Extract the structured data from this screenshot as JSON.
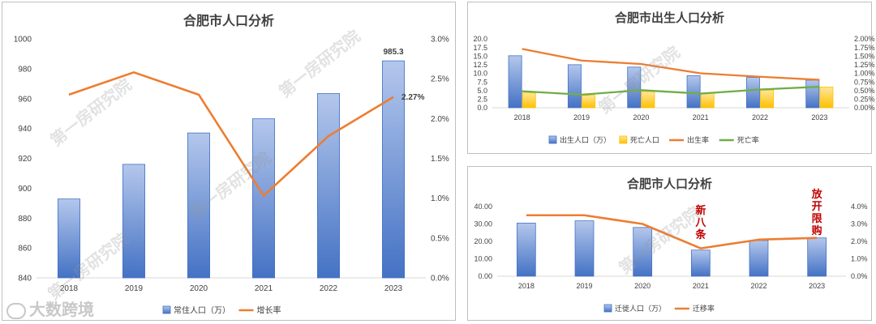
{
  "chart_data": [
    {
      "type": "bar+line",
      "title": "合肥市人口分析",
      "categories": [
        "2018",
        "2019",
        "2020",
        "2021",
        "2022",
        "2023"
      ],
      "series": [
        {
          "name": "常住人口（万）",
          "type": "bar",
          "axis": "left",
          "values": [
            892.8,
            916.0,
            937.0,
            946.5,
            963.4,
            985.3
          ]
        },
        {
          "name": "增长率",
          "type": "line",
          "axis": "right",
          "values": [
            0.023,
            0.0258,
            0.023,
            0.0103,
            0.0178,
            0.0227
          ]
        }
      ],
      "left_axis": {
        "min": 840,
        "max": 1000,
        "ticks": [
          "840",
          "860",
          "880",
          "900",
          "920",
          "940",
          "960",
          "980",
          "1000"
        ]
      },
      "right_axis": {
        "min": 0,
        "max": 0.03,
        "ticks": [
          "0.0%",
          "0.5%",
          "1.0%",
          "1.5%",
          "2.0%",
          "2.5%",
          "3.0%"
        ]
      },
      "data_labels": [
        "985.3",
        "2.27%"
      ],
      "grid": false,
      "legend": "bottom",
      "colors": {
        "bar": "#4472c4",
        "line": "#ed7d31"
      }
    },
    {
      "type": "bar+line",
      "title": "合肥市出生人口分析",
      "categories": [
        "2018",
        "2019",
        "2020",
        "2021",
        "2022",
        "2023"
      ],
      "series": [
        {
          "name": "出生人口（万）",
          "type": "bar",
          "axis": "left",
          "values": [
            15.1,
            12.5,
            11.8,
            9.3,
            8.8,
            8.0
          ]
        },
        {
          "name": "死亡人口",
          "type": "bar",
          "axis": "left",
          "values": [
            4.3,
            3.6,
            4.7,
            4.2,
            5.1,
            6.0
          ]
        },
        {
          "name": "出生率",
          "type": "line",
          "axis": "right",
          "values": [
            0.0171,
            0.0137,
            0.0127,
            0.01,
            0.009,
            0.0081
          ]
        },
        {
          "name": "死亡率",
          "type": "line",
          "axis": "right",
          "values": [
            0.0048,
            0.0038,
            0.0051,
            0.0041,
            0.0053,
            0.0061
          ]
        }
      ],
      "left_axis": {
        "min": 0,
        "max": 20,
        "ticks": [
          "0.0",
          "2.5",
          "5.0",
          "7.5",
          "10.0",
          "12.5",
          "15.0",
          "17.5",
          "20.0"
        ]
      },
      "right_axis": {
        "min": 0,
        "max": 0.02,
        "ticks": [
          "0.00%",
          "0.25%",
          "0.50%",
          "0.75%",
          "1.00%",
          "1.25%",
          "1.50%",
          "1.75%",
          "2.00%"
        ]
      },
      "grid": false,
      "legend": "bottom",
      "colors": {
        "bar1": "#4472c4",
        "bar2": "#ffc000",
        "line1": "#ed7d31",
        "line2": "#70ad47"
      }
    },
    {
      "type": "bar+line",
      "title": "合肥市人口分析",
      "categories": [
        "2018",
        "2019",
        "2020",
        "2021",
        "2022",
        "2023"
      ],
      "series": [
        {
          "name": "迁徙人口（万）",
          "type": "bar",
          "axis": "left",
          "values": [
            30.5,
            31.8,
            28.0,
            15.0,
            20.5,
            22.0
          ]
        },
        {
          "name": "迁移率",
          "type": "line",
          "axis": "right",
          "values": [
            0.035,
            0.035,
            0.03,
            0.016,
            0.021,
            0.022
          ]
        }
      ],
      "left_axis": {
        "min": 0,
        "max": 40,
        "ticks": [
          "0.00",
          "10.00",
          "20.00",
          "30.00",
          "40.00"
        ]
      },
      "right_axis": {
        "min": 0,
        "max": 0.04,
        "ticks": [
          "0.0%",
          "1.0%",
          "2.0%",
          "3.0%",
          "4.0%"
        ]
      },
      "annotations": [
        {
          "text": "新八条",
          "category": "2021"
        },
        {
          "text": "放开限购",
          "category": "2023"
        }
      ],
      "grid": false,
      "legend": "bottom",
      "colors": {
        "bar": "#4472c4",
        "line": "#ed7d31",
        "annotation": "#c00000"
      }
    }
  ],
  "watermark": "第一房研究院",
  "brand": "大数跨境"
}
